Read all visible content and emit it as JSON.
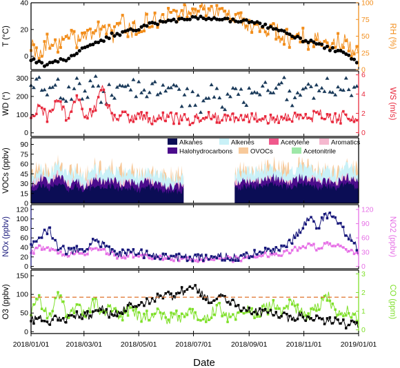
{
  "figure": {
    "xaxis": {
      "title": "Date",
      "ticks": [
        "2018/01/01",
        "2018/03/01",
        "2018/05/01",
        "2018/07/01",
        "2018/09/01",
        "2018/11/01",
        "2019/01/01"
      ],
      "tick_days": [
        0,
        59,
        120,
        181,
        243,
        304,
        365
      ],
      "range_days": [
        0,
        365
      ]
    },
    "colors": {
      "temperature": "#000000",
      "rh": "#f28e1c",
      "wd": "#1a3a5a",
      "ws": "#e8283c",
      "alkanes": "#0b0d55",
      "alkenes": "#c9f1f7",
      "acetylene": "#f0598c",
      "aromatics": "#f5b8cf",
      "halohydrocarbons": "#4b0c8c",
      "ovocs": "#f7c99a",
      "acetonitrile": "#9ee8a8",
      "nox": "#16167a",
      "no2": "#e66fe6",
      "o3": "#000000",
      "co": "#7fe02a",
      "threshold": "#e0702a"
    }
  },
  "chart_data": [
    {
      "type": "scatter",
      "panel": "temperature-rh",
      "ylabel": "T (°C)",
      "ylabel_right": "RH (%)",
      "ylim": [
        -10,
        40
      ],
      "yticks": [
        0,
        20,
        40
      ],
      "ylim_right": [
        0,
        100
      ],
      "yticks_right": [
        0,
        25,
        50,
        75,
        100
      ],
      "series": [
        {
          "axis": "left",
          "style": "dots",
          "x_days": [
            0,
            15,
            30,
            45,
            60,
            75,
            90,
            105,
            120,
            135,
            150,
            165,
            180,
            195,
            210,
            225,
            240,
            255,
            270,
            285,
            300,
            315,
            330,
            345,
            360,
            365
          ],
          "y": [
            -2,
            -6,
            -4,
            -1,
            6,
            10,
            16,
            18,
            21,
            24,
            26,
            27,
            28,
            29,
            28,
            27,
            26,
            24,
            20,
            17,
            13,
            10,
            6,
            3,
            -2,
            -5
          ]
        },
        {
          "axis": "right",
          "style": "line-square",
          "x_days": [
            0,
            10,
            20,
            30,
            40,
            50,
            60,
            70,
            80,
            90,
            100,
            110,
            120,
            130,
            140,
            150,
            160,
            170,
            180,
            190,
            200,
            210,
            220,
            230,
            240,
            250,
            260,
            270,
            280,
            290,
            300,
            310,
            320,
            330,
            340,
            350,
            360,
            365
          ],
          "y": [
            35,
            25,
            45,
            30,
            55,
            40,
            60,
            45,
            70,
            50,
            75,
            55,
            65,
            75,
            70,
            80,
            78,
            85,
            88,
            90,
            85,
            82,
            80,
            75,
            70,
            65,
            55,
            60,
            50,
            45,
            55,
            40,
            50,
            35,
            45,
            40,
            30,
            20
          ]
        }
      ]
    },
    {
      "type": "scatter",
      "panel": "wind",
      "ylabel": "WD (°)",
      "ylabel_right": "WS (m/s)",
      "ylim": [
        -20,
        340
      ],
      "yticks": [
        0,
        100,
        200,
        300
      ],
      "ylim_right": [
        -0.4,
        6.4
      ],
      "yticks_right": [
        0,
        2,
        4,
        6
      ],
      "series": [
        {
          "axis": "left",
          "style": "triangles",
          "x_days": [
            0,
            10,
            20,
            30,
            40,
            50,
            60,
            70,
            80,
            90,
            100,
            110,
            120,
            130,
            140,
            150,
            160,
            170,
            180,
            190,
            200,
            210,
            220,
            230,
            240,
            250,
            260,
            270,
            280,
            290,
            300,
            310,
            320,
            330,
            340,
            350,
            360,
            365
          ],
          "y": [
            230,
            280,
            200,
            250,
            190,
            270,
            220,
            300,
            180,
            240,
            210,
            260,
            230,
            200,
            250,
            190,
            220,
            180,
            210,
            160,
            230,
            200,
            170,
            240,
            190,
            210,
            250,
            220,
            270,
            200,
            240,
            260,
            220,
            280,
            210,
            250,
            230,
            200
          ]
        },
        {
          "axis": "right",
          "style": "line-square",
          "x_days": [
            0,
            10,
            20,
            30,
            40,
            50,
            60,
            70,
            80,
            90,
            100,
            110,
            120,
            130,
            140,
            150,
            160,
            170,
            180,
            190,
            200,
            210,
            220,
            230,
            240,
            250,
            260,
            270,
            280,
            290,
            300,
            310,
            320,
            330,
            340,
            350,
            360,
            365
          ],
          "y": [
            1.8,
            2.6,
            1.5,
            3.4,
            1.6,
            3.8,
            1.4,
            2.2,
            4.8,
            1.5,
            1.8,
            1.4,
            1.6,
            1.5,
            1.3,
            1.6,
            1.4,
            1.5,
            1.3,
            1.7,
            1.6,
            1.5,
            1.4,
            1.6,
            1.5,
            1.7,
            1.5,
            1.4,
            1.6,
            1.3,
            1.8,
            1.5,
            2.0,
            1.6,
            1.4,
            1.7,
            1.5,
            1.3
          ]
        }
      ]
    },
    {
      "type": "area",
      "panel": "vocs",
      "ylabel": "VOCs (ppbv)",
      "ylim": [
        0,
        100
      ],
      "yticks": [
        0,
        15,
        30,
        45,
        60,
        75,
        90
      ],
      "gap_days": [
        170,
        227
      ],
      "legend": [
        "Alkanes",
        "Alkenes",
        "Acetylene",
        "Aromatics",
        "Halohydrocarbons",
        "OVOCs",
        "Acetonitrile"
      ],
      "x_days": [
        0,
        10,
        20,
        30,
        40,
        50,
        60,
        70,
        80,
        90,
        100,
        110,
        120,
        130,
        140,
        150,
        160,
        170,
        227,
        240,
        250,
        260,
        270,
        280,
        290,
        300,
        310,
        320,
        330,
        340,
        350,
        360,
        365
      ],
      "total": [
        40,
        55,
        45,
        60,
        42,
        50,
        38,
        55,
        48,
        52,
        45,
        48,
        42,
        50,
        44,
        40,
        38,
        42,
        45,
        50,
        48,
        52,
        55,
        50,
        48,
        55,
        52,
        48,
        50,
        45,
        55,
        50,
        45
      ],
      "halohydrocarbons": [
        25,
        40,
        30,
        45,
        28,
        35,
        24,
        38,
        32,
        36,
        30,
        33,
        27,
        35,
        29,
        26,
        24,
        28,
        30,
        35,
        33,
        37,
        40,
        35,
        32,
        40,
        38,
        33,
        35,
        30,
        42,
        35,
        30
      ],
      "alkanes": [
        18,
        28,
        22,
        32,
        20,
        25,
        18,
        27,
        23,
        26,
        21,
        24,
        19,
        25,
        21,
        19,
        17,
        20,
        22,
        26,
        24,
        27,
        30,
        26,
        23,
        29,
        28,
        24,
        26,
        22,
        31,
        26,
        22
      ]
    },
    {
      "type": "scatter",
      "panel": "nox-no2",
      "ylabel": "NOx (ppbv)",
      "ylabel_right": "NO2 (ppbv)",
      "ylim": [
        -5,
        130
      ],
      "yticks": [
        0,
        20,
        40,
        60,
        80,
        100,
        120
      ],
      "ylim_right": [
        -5,
        130
      ],
      "yticks_right": [
        0,
        30,
        60,
        90,
        120
      ],
      "series": [
        {
          "axis": "left",
          "style": "line-square",
          "x_days": [
            0,
            10,
            20,
            30,
            40,
            50,
            60,
            70,
            80,
            90,
            100,
            110,
            120,
            130,
            140,
            150,
            160,
            170,
            180,
            190,
            200,
            210,
            220,
            230,
            240,
            250,
            260,
            270,
            280,
            290,
            300,
            310,
            320,
            330,
            340,
            350,
            360,
            365
          ],
          "y": [
            45,
            60,
            80,
            40,
            30,
            35,
            28,
            55,
            45,
            30,
            25,
            32,
            28,
            25,
            22,
            20,
            18,
            20,
            18,
            20,
            18,
            22,
            20,
            18,
            22,
            28,
            35,
            30,
            40,
            55,
            75,
            100,
            85,
            110,
            95,
            70,
            55,
            30
          ]
        },
        {
          "axis": "right",
          "style": "line-square",
          "x_days": [
            0,
            10,
            20,
            30,
            40,
            50,
            60,
            70,
            80,
            90,
            100,
            110,
            120,
            130,
            140,
            150,
            160,
            170,
            180,
            190,
            200,
            210,
            220,
            230,
            240,
            250,
            260,
            270,
            280,
            290,
            300,
            310,
            320,
            330,
            340,
            350,
            360,
            365
          ],
          "y": [
            30,
            40,
            38,
            28,
            22,
            30,
            24,
            40,
            36,
            26,
            20,
            25,
            22,
            20,
            18,
            16,
            15,
            16,
            15,
            16,
            15,
            17,
            16,
            15,
            17,
            20,
            24,
            22,
            26,
            32,
            40,
            45,
            38,
            48,
            42,
            35,
            30,
            22
          ]
        }
      ]
    },
    {
      "type": "scatter",
      "panel": "o3-co",
      "ylabel": "O3 (ppbv)",
      "ylabel_right": "CO (ppm)",
      "ylim": [
        -5,
        165
      ],
      "yticks": [
        0,
        50,
        100,
        150
      ],
      "ylim_right": [
        -0.2,
        3.2
      ],
      "yticks_right": [
        0,
        1,
        2,
        3
      ],
      "threshold_right": 1.75,
      "series": [
        {
          "axis": "left",
          "style": "line-square",
          "x_days": [
            0,
            10,
            20,
            30,
            40,
            50,
            60,
            70,
            80,
            90,
            100,
            110,
            120,
            130,
            140,
            150,
            160,
            170,
            180,
            190,
            200,
            210,
            220,
            230,
            240,
            250,
            260,
            270,
            280,
            290,
            300,
            310,
            320,
            330,
            340,
            350,
            360,
            365
          ],
          "y": [
            30,
            35,
            25,
            40,
            30,
            45,
            40,
            50,
            60,
            45,
            55,
            70,
            65,
            80,
            90,
            100,
            95,
            110,
            120,
            100,
            85,
            95,
            80,
            70,
            60,
            55,
            50,
            45,
            40,
            35,
            45,
            30,
            35,
            25,
            30,
            20,
            25,
            20
          ]
        },
        {
          "axis": "right",
          "style": "line-square",
          "x_days": [
            0,
            10,
            20,
            30,
            40,
            50,
            60,
            70,
            80,
            90,
            100,
            110,
            120,
            130,
            140,
            150,
            160,
            170,
            180,
            190,
            200,
            210,
            220,
            230,
            240,
            250,
            260,
            270,
            280,
            290,
            300,
            310,
            320,
            330,
            340,
            350,
            360,
            365
          ],
          "y": [
            1.0,
            1.6,
            0.6,
            1.8,
            0.8,
            1.3,
            0.7,
            1.5,
            0.9,
            1.2,
            0.6,
            1.1,
            0.8,
            0.7,
            1.0,
            0.6,
            0.8,
            0.7,
            0.9,
            0.6,
            0.8,
            1.2,
            0.7,
            0.9,
            1.0,
            0.8,
            1.1,
            1.3,
            0.9,
            1.5,
            1.0,
            0.8,
            1.2,
            1.9,
            0.9,
            1.1,
            0.7,
            0.6
          ]
        }
      ]
    }
  ]
}
